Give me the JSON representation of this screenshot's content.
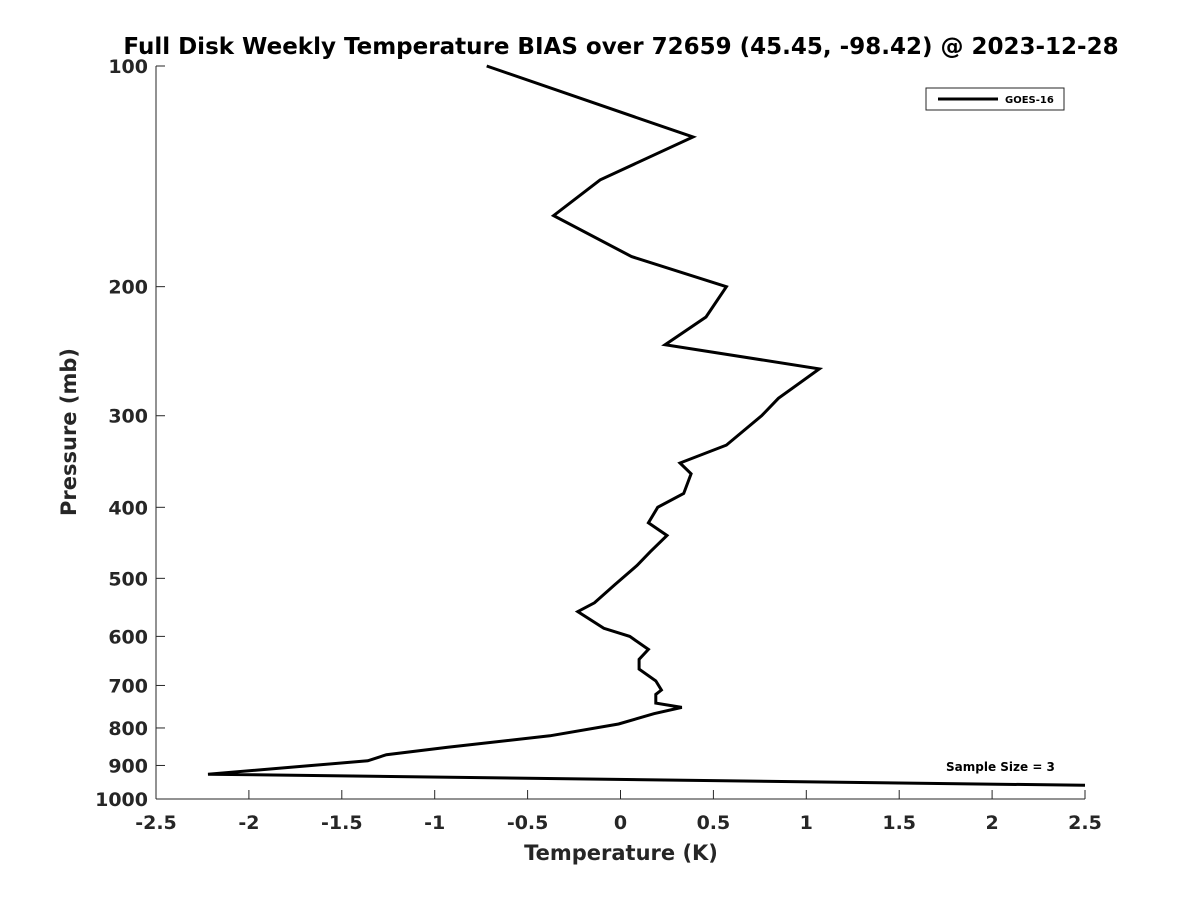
{
  "chart_data": {
    "type": "line",
    "title": "Full Disk Weekly Temperature BIAS over 72659 (45.45, -98.42) @ 2023-12-28",
    "xlabel": "Temperature (K)",
    "ylabel": "Pressure (mb)",
    "xlim": [
      -2.5,
      2.5
    ],
    "ylim": [
      100,
      1000
    ],
    "y_scale": "log",
    "y_reversed": true,
    "x_ticks": [
      "-2.5",
      "-2",
      "-1.5",
      "-1",
      "-0.5",
      "0",
      "0.5",
      "1",
      "1.5",
      "2",
      "2.5"
    ],
    "y_ticks": [
      "100",
      "200",
      "300",
      "400",
      "500",
      "600",
      "700",
      "800",
      "900",
      "1000"
    ],
    "grid": false,
    "legend_position": "top-right",
    "annotation": "Sample Size = 3",
    "series": [
      {
        "name": "GOES-16",
        "color": "#000000",
        "x": [
          -0.72,
          0.39,
          -0.11,
          -0.36,
          0.06,
          0.57,
          0.46,
          0.24,
          1.07,
          0.85,
          0.76,
          0.57,
          0.32,
          0.38,
          0.34,
          0.2,
          0.15,
          0.25,
          0.16,
          0.09,
          -0.03,
          -0.14,
          -0.23,
          -0.09,
          0.05,
          0.15,
          0.1,
          0.1,
          0.19,
          0.22,
          0.19,
          0.19,
          0.33,
          0.18,
          -0.01,
          -0.38,
          -0.93,
          -1.26,
          -1.36,
          -1.68,
          -2.22,
          2.5
        ],
        "y": [
          100,
          125,
          143,
          160,
          182,
          200,
          220,
          240,
          259,
          284,
          300,
          329,
          348,
          360,
          383,
          400,
          420,
          437,
          460,
          480,
          510,
          540,
          555,
          585,
          600,
          625,
          645,
          665,
          690,
          710,
          720,
          740,
          750,
          765,
          790,
          820,
          850,
          870,
          887,
          901,
          925,
          958
        ]
      }
    ]
  }
}
